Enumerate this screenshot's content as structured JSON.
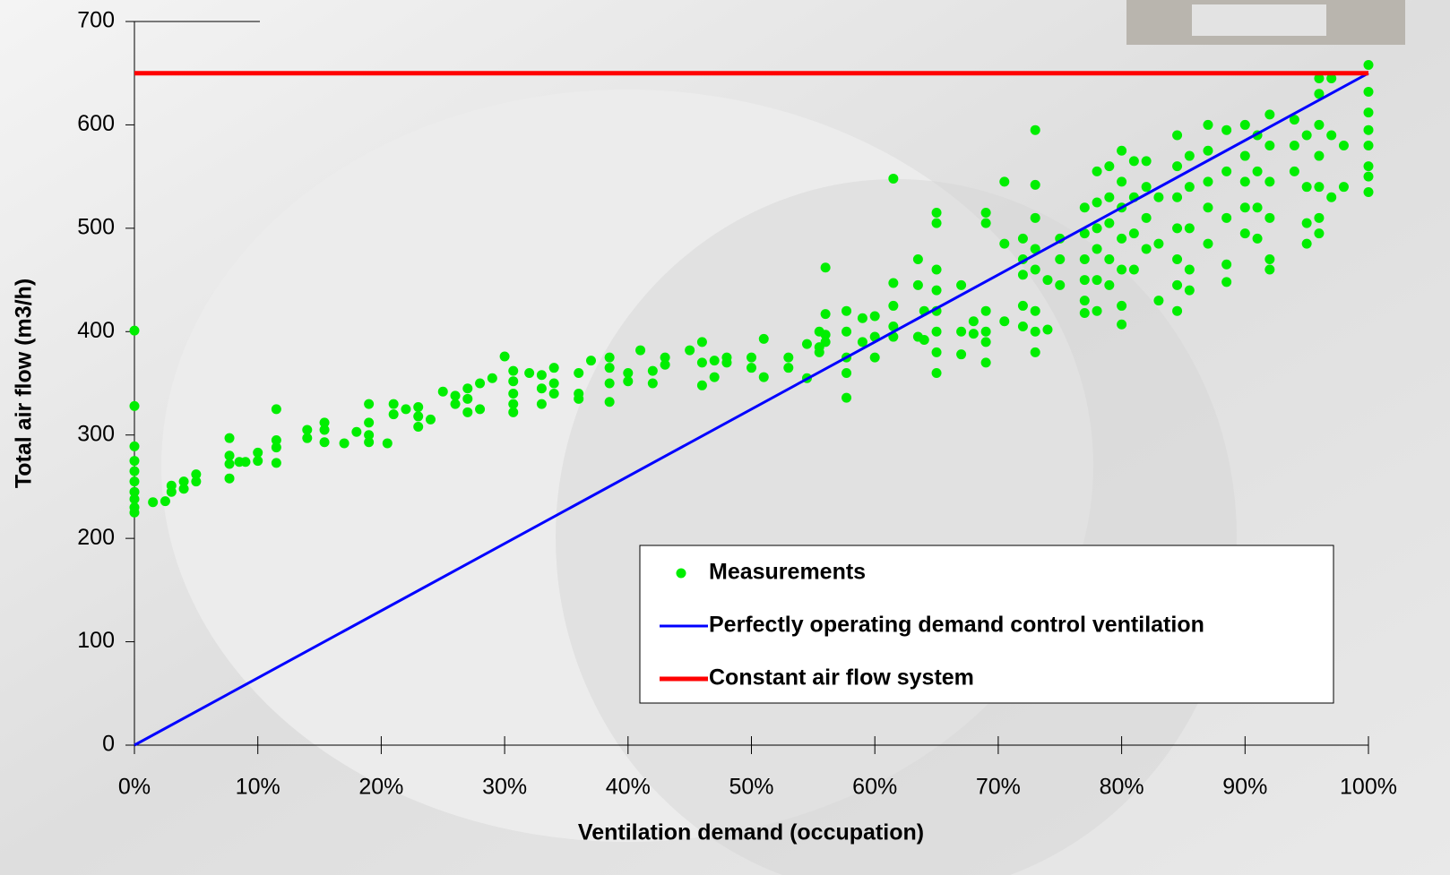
{
  "chart_data": {
    "type": "scatter",
    "xlabel": "Ventilation demand (occupation)",
    "ylabel": "Total air flow (m3/h)",
    "xlim": [
      0,
      100
    ],
    "ylim": [
      0,
      700
    ],
    "xticks": [
      {
        "value": 0,
        "label": "0%"
      },
      {
        "value": 10,
        "label": "10%"
      },
      {
        "value": 20,
        "label": "20%"
      },
      {
        "value": 30,
        "label": "30%"
      },
      {
        "value": 40,
        "label": "40%"
      },
      {
        "value": 50,
        "label": "50%"
      },
      {
        "value": 60,
        "label": "60%"
      },
      {
        "value": 70,
        "label": "70%"
      },
      {
        "value": 80,
        "label": "80%"
      },
      {
        "value": 90,
        "label": "90%"
      },
      {
        "value": 100,
        "label": "100%"
      }
    ],
    "yticks": [
      0,
      100,
      200,
      300,
      400,
      500,
      600,
      700
    ],
    "series": [
      {
        "name": "Measurements",
        "type": "scatter",
        "color": "#00ee00",
        "x": [
          0,
          0,
          0,
          0,
          0,
          0,
          0,
          0,
          0,
          0,
          1.5,
          2.5,
          3,
          3,
          4,
          4,
          5,
          5,
          7.7,
          7.7,
          7.7,
          7.7,
          8.5,
          9,
          10,
          10,
          11.5,
          11.5,
          11.5,
          11.5,
          14,
          14,
          15.4,
          15.4,
          15.4,
          17,
          18,
          19,
          19,
          19,
          19,
          20.5,
          21,
          21,
          22,
          23,
          23,
          23,
          24,
          25,
          26,
          26,
          27,
          27,
          27,
          28,
          28,
          29,
          30,
          30.7,
          30.7,
          30.7,
          30.7,
          30.7,
          32,
          33,
          33,
          33,
          34,
          34,
          34,
          36,
          36,
          36,
          37,
          38.5,
          38.5,
          38.5,
          38.5,
          40,
          40,
          41,
          42,
          42,
          43,
          43,
          45,
          46,
          46,
          46,
          47,
          47,
          48,
          48,
          50,
          50,
          51,
          51,
          53,
          53,
          54.5,
          54.5,
          55.5,
          55.5,
          55.5,
          56,
          56,
          56,
          56,
          57.7,
          57.7,
          57.7,
          57.7,
          57.7,
          59,
          59,
          60,
          60,
          60,
          61.5,
          61.5,
          61.5,
          61.5,
          61.5,
          63.5,
          63.5,
          63.5,
          64,
          64,
          65,
          65,
          65,
          65,
          65,
          65,
          65,
          65,
          67,
          67,
          67,
          68,
          68,
          69,
          69,
          69,
          69,
          69,
          69,
          70.5,
          70.5,
          70.5,
          72,
          72,
          72,
          72,
          72,
          73,
          73,
          73,
          73,
          73,
          73,
          73,
          73,
          74,
          74,
          75,
          75,
          75,
          77,
          77,
          77,
          77,
          77,
          77,
          78,
          78,
          78,
          78,
          78,
          78,
          79,
          79,
          79,
          79,
          79,
          80,
          80,
          80,
          80,
          80,
          80,
          80,
          81,
          81,
          81,
          81,
          82,
          82,
          82,
          82,
          83,
          83,
          83,
          84.5,
          84.5,
          84.5,
          84.5,
          84.5,
          84.5,
          84.5,
          85.5,
          85.5,
          85.5,
          85.5,
          85.5,
          87,
          87,
          87,
          87,
          87,
          88.5,
          88.5,
          88.5,
          88.5,
          88.5,
          90,
          90,
          90,
          90,
          90,
          91,
          91,
          91,
          91,
          92,
          92,
          92,
          92,
          92,
          92,
          94,
          94,
          94,
          95,
          95,
          95,
          95,
          96,
          96,
          96,
          96,
          96,
          96,
          96,
          97,
          97,
          97,
          98,
          98,
          100,
          100,
          100,
          100,
          100,
          100,
          100,
          100
        ],
        "values": [
          401,
          328,
          289,
          275,
          265,
          255,
          245,
          238,
          230,
          225,
          235,
          236,
          245,
          251,
          248,
          255,
          255,
          262,
          297,
          280,
          272,
          258,
          274,
          274,
          275,
          283,
          325,
          295,
          288,
          273,
          305,
          297,
          312,
          305,
          293,
          292,
          303,
          330,
          312,
          300,
          293,
          292,
          330,
          320,
          325,
          327,
          318,
          308,
          315,
          342,
          338,
          330,
          345,
          335,
          322,
          325,
          350,
          355,
          376,
          362,
          352,
          340,
          330,
          322,
          360,
          358,
          345,
          330,
          365,
          350,
          340,
          340,
          335,
          360,
          372,
          375,
          365,
          350,
          332,
          360,
          352,
          382,
          362,
          350,
          375,
          368,
          382,
          390,
          370,
          348,
          372,
          356,
          375,
          370,
          375,
          365,
          393,
          356,
          375,
          365,
          388,
          355,
          400,
          385,
          380,
          462,
          417,
          397,
          390,
          420,
          400,
          375,
          360,
          336,
          413,
          390,
          415,
          395,
          375,
          548,
          447,
          425,
          405,
          395,
          470,
          445,
          395,
          392,
          420,
          515,
          505,
          460,
          440,
          420,
          400,
          380,
          360,
          400,
          378,
          445,
          410,
          398,
          515,
          505,
          420,
          400,
          390,
          370,
          545,
          485,
          410,
          490,
          470,
          455,
          425,
          405,
          595,
          542,
          510,
          480,
          460,
          420,
          400,
          380,
          402,
          450,
          490,
          470,
          445,
          520,
          495,
          470,
          450,
          430,
          418,
          555,
          525,
          500,
          480,
          450,
          420,
          560,
          530,
          505,
          470,
          445,
          575,
          545,
          520,
          490,
          460,
          425,
          407,
          565,
          530,
          495,
          460,
          565,
          540,
          510,
          480,
          530,
          485,
          430,
          590,
          560,
          530,
          500,
          470,
          445,
          420,
          570,
          540,
          500,
          460,
          440,
          600,
          575,
          545,
          520,
          485,
          595,
          555,
          510,
          465,
          448,
          600,
          570,
          545,
          520,
          495,
          590,
          555,
          520,
          490,
          610,
          580,
          545,
          510,
          470,
          460,
          605,
          580,
          555,
          590,
          540,
          505,
          485,
          645,
          630,
          600,
          570,
          540,
          510,
          495,
          645,
          590,
          530,
          580,
          540,
          658,
          632,
          612,
          595,
          580,
          560,
          550,
          535
        ]
      },
      {
        "name": "Perfectly operating demand control ventilation",
        "type": "line",
        "color": "#0000ff",
        "x": [
          0,
          100
        ],
        "values": [
          0,
          650
        ]
      },
      {
        "name": "Constant air flow system",
        "type": "line",
        "color": "#ff0000",
        "x": [
          0,
          100
        ],
        "values": [
          650,
          650
        ]
      }
    ]
  }
}
